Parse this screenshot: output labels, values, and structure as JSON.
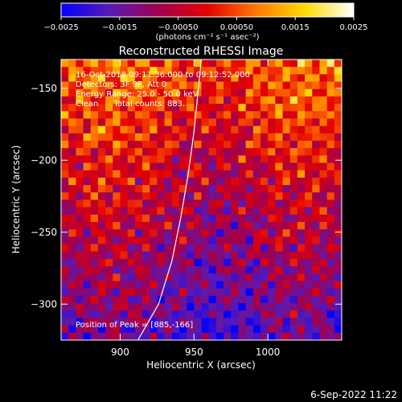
{
  "figure": {
    "timestamp": "6-Sep-2022 11:22"
  },
  "chart_data": {
    "type": "heatmap",
    "title": "Reconstructed RHESSI Image",
    "xlabel": "Heliocentric X (arcsec)",
    "ylabel": "Heliocentric Y (arcsec)",
    "xlim": [
      860,
      1050
    ],
    "ylim": [
      -325,
      -130
    ],
    "x_ticks": [
      900,
      950,
      1000
    ],
    "y_ticks": [
      -150,
      -200,
      -250,
      -300
    ],
    "x_tick_labels": [
      "900",
      "950",
      "1000"
    ],
    "y_tick_labels": [
      "−150",
      "−200",
      "−250",
      "−300"
    ],
    "colorbar": {
      "range": [
        -0.0025,
        0.0025
      ],
      "ticks": [
        -0.0025,
        -0.0015,
        -0.0005,
        0.0005,
        0.0015,
        0.0025
      ],
      "tick_labels": [
        "−0.0025",
        "−0.0015",
        "−0.00050",
        "0.00050",
        "0.0015",
        "0.0025"
      ],
      "label": "(photons cm⁻² s⁻¹ asec⁻²)",
      "colormap": "blue-purple-red-orange-yellow-white",
      "colors": [
        "#0000ff",
        "#5a1ab4",
        "#a00050",
        "#e60000",
        "#ff7800",
        "#ffdc00",
        "#ffffff"
      ]
    },
    "annotations": [
      "16-Oct-2018 09:11:36.000 to 09:12:52.000",
      "Detectors: 3F 9F, Att 0",
      "Energy Range: 25.0 - 50.0 keV",
      "Clean      Total counts: 883.",
      "Position of Peak = [885,-166]"
    ],
    "peak": {
      "x": 885,
      "y": -166
    },
    "limb_curve": [
      [
        912,
        -325
      ],
      [
        926,
        -300
      ],
      [
        935,
        -270
      ],
      [
        941,
        -240
      ],
      [
        946,
        -210
      ],
      [
        950,
        -180
      ],
      [
        953,
        -150
      ],
      [
        955,
        -130
      ]
    ],
    "grid": false
  }
}
